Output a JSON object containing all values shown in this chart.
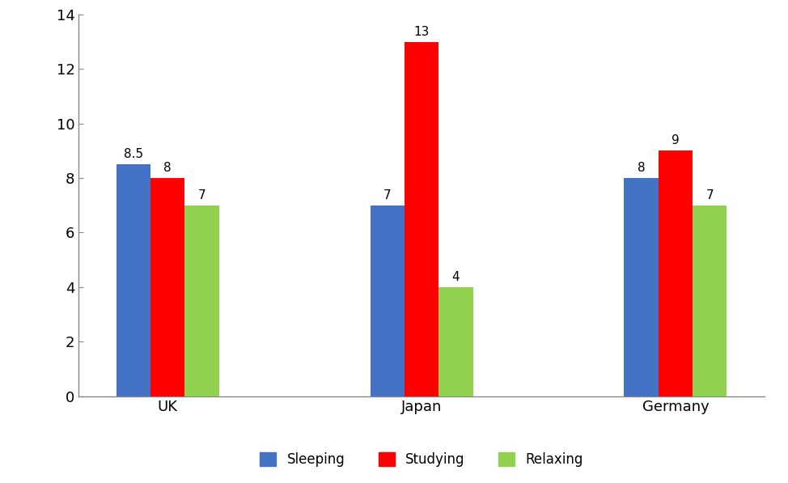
{
  "categories": [
    "UK",
    "Japan",
    "Germany"
  ],
  "series": [
    {
      "label": "Sleeping",
      "values": [
        8.5,
        7,
        8
      ],
      "color": "#4472C4"
    },
    {
      "label": "Studying",
      "values": [
        8,
        13,
        9
      ],
      "color": "#FF0000"
    },
    {
      "label": "Relaxing",
      "values": [
        7,
        4,
        7
      ],
      "color": "#92D050"
    }
  ],
  "ylim": [
    0,
    14
  ],
  "yticks": [
    0,
    2,
    4,
    6,
    8,
    10,
    12,
    14
  ],
  "bar_width": 0.27,
  "tick_fontsize": 13,
  "legend_fontsize": 12,
  "value_label_fontsize": 11,
  "xtick_fontsize": 13,
  "background_color": "#ffffff",
  "spine_color": "#888888"
}
